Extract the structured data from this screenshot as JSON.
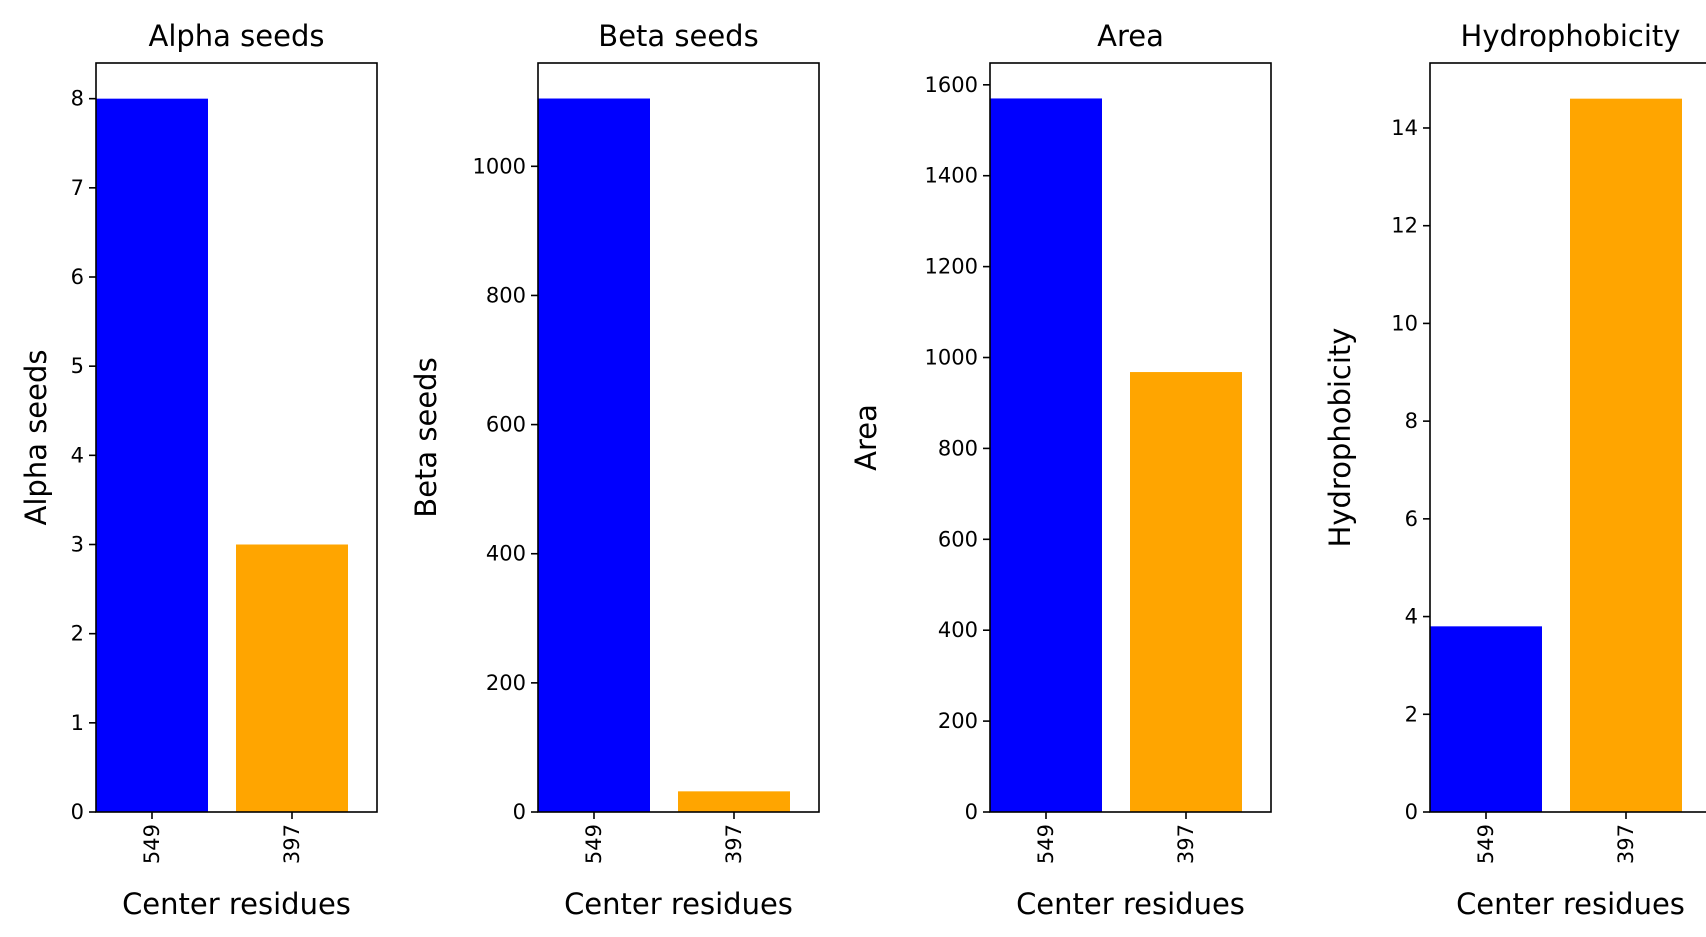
{
  "chart_data": [
    {
      "type": "bar",
      "title": "Alpha seeds",
      "xlabel": "Center residues",
      "ylabel": "Alpha seeds",
      "categories": [
        "549",
        "397"
      ],
      "values": [
        8,
        3
      ],
      "colors": [
        "#0000ff",
        "#ffa500"
      ],
      "ylim": [
        0,
        8.4
      ],
      "yticks": [
        0,
        1,
        2,
        3,
        4,
        5,
        6,
        7,
        8
      ],
      "grid": false,
      "legend": "none"
    },
    {
      "type": "bar",
      "title": "Beta seeds",
      "xlabel": "Center residues",
      "ylabel": "Beta seeds",
      "categories": [
        "549",
        "397"
      ],
      "values": [
        1105,
        32
      ],
      "colors": [
        "#0000ff",
        "#ffa500"
      ],
      "ylim": [
        0,
        1160
      ],
      "yticks": [
        0,
        200,
        400,
        600,
        800,
        1000
      ],
      "grid": false,
      "legend": "none"
    },
    {
      "type": "bar",
      "title": "Area",
      "xlabel": "Center residues",
      "ylabel": "Area",
      "categories": [
        "549",
        "397"
      ],
      "values": [
        1570,
        968
      ],
      "colors": [
        "#0000ff",
        "#ffa500"
      ],
      "ylim": [
        0,
        1648
      ],
      "yticks": [
        0,
        200,
        400,
        600,
        800,
        1000,
        1200,
        1400,
        1600
      ],
      "grid": false,
      "legend": "none"
    },
    {
      "type": "bar",
      "title": "Hydrophobicity",
      "xlabel": "Center residues",
      "ylabel": "Hydrophobicity",
      "categories": [
        "549",
        "397"
      ],
      "values": [
        3.8,
        14.6
      ],
      "colors": [
        "#0000ff",
        "#ffa500"
      ],
      "ylim": [
        0,
        15.33
      ],
      "yticks": [
        0,
        2,
        4,
        6,
        8,
        10,
        12,
        14
      ],
      "grid": false,
      "legend": "none"
    }
  ]
}
